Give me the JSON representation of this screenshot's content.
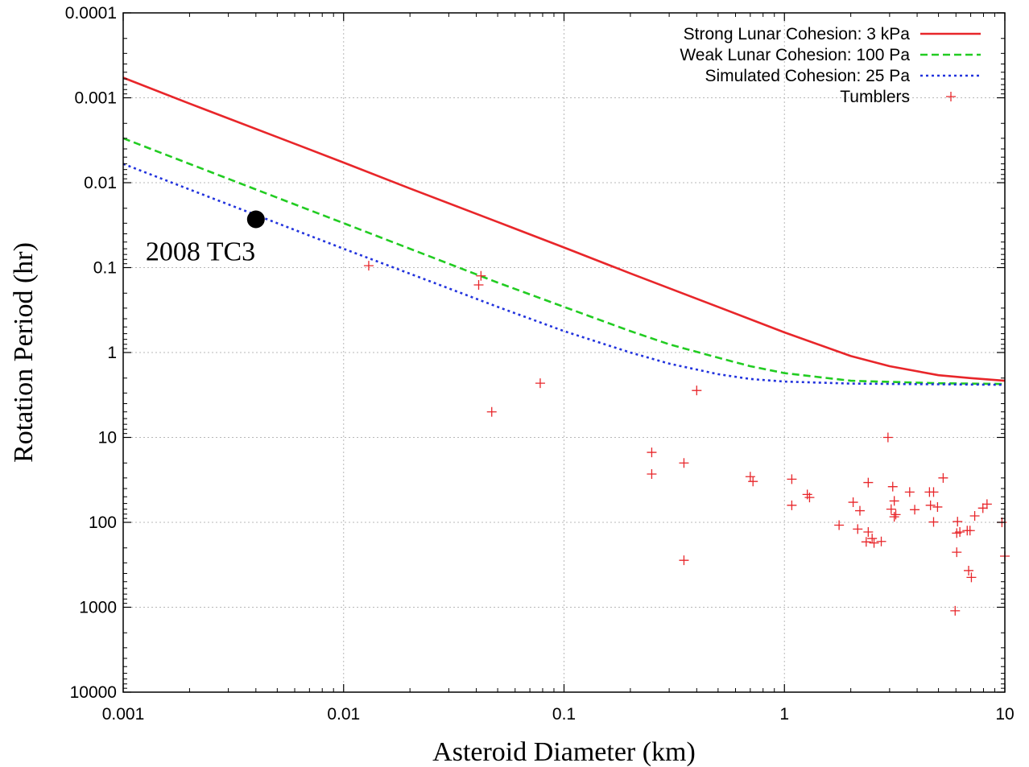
{
  "chart_data": {
    "type": "line",
    "xlabel": "Asteroid Diameter (km)",
    "ylabel": "Rotation Period (hr)",
    "x_scale": "log",
    "y_scale": "log",
    "y_inverted": true,
    "xlim": [
      0.001,
      10
    ],
    "ylim": [
      0.0001,
      10000
    ],
    "x_ticks": [
      0.001,
      0.01,
      0.1,
      1,
      10
    ],
    "x_tick_labels": [
      "0.001",
      "0.01",
      "0.1",
      "1",
      "10"
    ],
    "y_ticks": [
      0.0001,
      0.001,
      0.01,
      0.1,
      1,
      10,
      100,
      1000,
      10000
    ],
    "y_tick_labels": [
      "0.0001",
      "0.001",
      "0.01",
      "0.1",
      "1",
      "10",
      "100",
      "1000",
      "10000"
    ],
    "grid": true,
    "legend_position": "top-right",
    "series": [
      {
        "name": "Strong Lunar Cohesion: 3 kPa",
        "style": "solid",
        "color": "#e8262a",
        "x": [
          0.001,
          0.002,
          0.005,
          0.01,
          0.02,
          0.05,
          0.1,
          0.2,
          0.5,
          1,
          2,
          3,
          5,
          7,
          10
        ],
        "y": [
          0.00058,
          0.00117,
          0.0029,
          0.0058,
          0.0117,
          0.029,
          0.058,
          0.117,
          0.29,
          0.58,
          1.1,
          1.45,
          1.85,
          2.0,
          2.15
        ]
      },
      {
        "name": "Weak Lunar Cohesion: 100 Pa",
        "style": "dashed",
        "color": "#22cc22",
        "x": [
          0.001,
          0.002,
          0.005,
          0.01,
          0.02,
          0.05,
          0.1,
          0.2,
          0.3,
          0.5,
          0.7,
          1,
          2,
          5,
          10
        ],
        "y": [
          0.003,
          0.006,
          0.015,
          0.03,
          0.06,
          0.15,
          0.29,
          0.56,
          0.8,
          1.15,
          1.45,
          1.75,
          2.15,
          2.3,
          2.35
        ]
      },
      {
        "name": "Simulated Cohesion: 25 Pa",
        "style": "dotted",
        "color": "#2233dd",
        "x": [
          0.001,
          0.002,
          0.005,
          0.01,
          0.02,
          0.05,
          0.1,
          0.2,
          0.3,
          0.5,
          0.7,
          1,
          2,
          5,
          10
        ],
        "y": [
          0.006,
          0.012,
          0.03,
          0.06,
          0.118,
          0.29,
          0.56,
          1.0,
          1.35,
          1.8,
          2.05,
          2.2,
          2.32,
          2.37,
          2.4
        ]
      },
      {
        "name": "Tumblers",
        "style": "points",
        "marker": "plus",
        "color": "#e8262a",
        "x": [
          0.013,
          0.041,
          0.042,
          0.047,
          0.078,
          0.25,
          0.25,
          0.35,
          0.35,
          0.4,
          0.7,
          0.72,
          1.08,
          1.08,
          1.27,
          1.3,
          1.77,
          2.05,
          2.15,
          2.2,
          2.35,
          2.4,
          2.4,
          2.5,
          2.55,
          2.75,
          2.95,
          3.05,
          3.1,
          3.15,
          3.15,
          3.2,
          3.7,
          3.9,
          4.55,
          4.6,
          4.75,
          4.75,
          4.95,
          5.25,
          5.95,
          6.05,
          6.05,
          6.1,
          6.25,
          6.75,
          6.85,
          6.95,
          7.05,
          7.3,
          7.95,
          8.3,
          9.7,
          10.0
        ],
        "y": [
          0.095,
          0.16,
          0.125,
          5.0,
          2.3,
          15,
          27,
          20,
          280,
          2.8,
          29,
          33,
          31,
          63,
          47,
          51,
          108,
          58,
          120,
          73,
          170,
          34,
          130,
          155,
          175,
          168,
          10,
          70,
          38,
          56,
          86,
          81,
          44,
          71,
          44,
          63,
          99,
          44,
          66,
          30,
          1100,
          225,
          134,
          98,
          130,
          125,
          370,
          125,
          445,
          84,
          68,
          61,
          100,
          250
        ]
      }
    ],
    "annotations": [
      {
        "text": "2008 TC3",
        "x": 0.004,
        "y": 0.027,
        "marker": "filled-circle"
      }
    ]
  }
}
